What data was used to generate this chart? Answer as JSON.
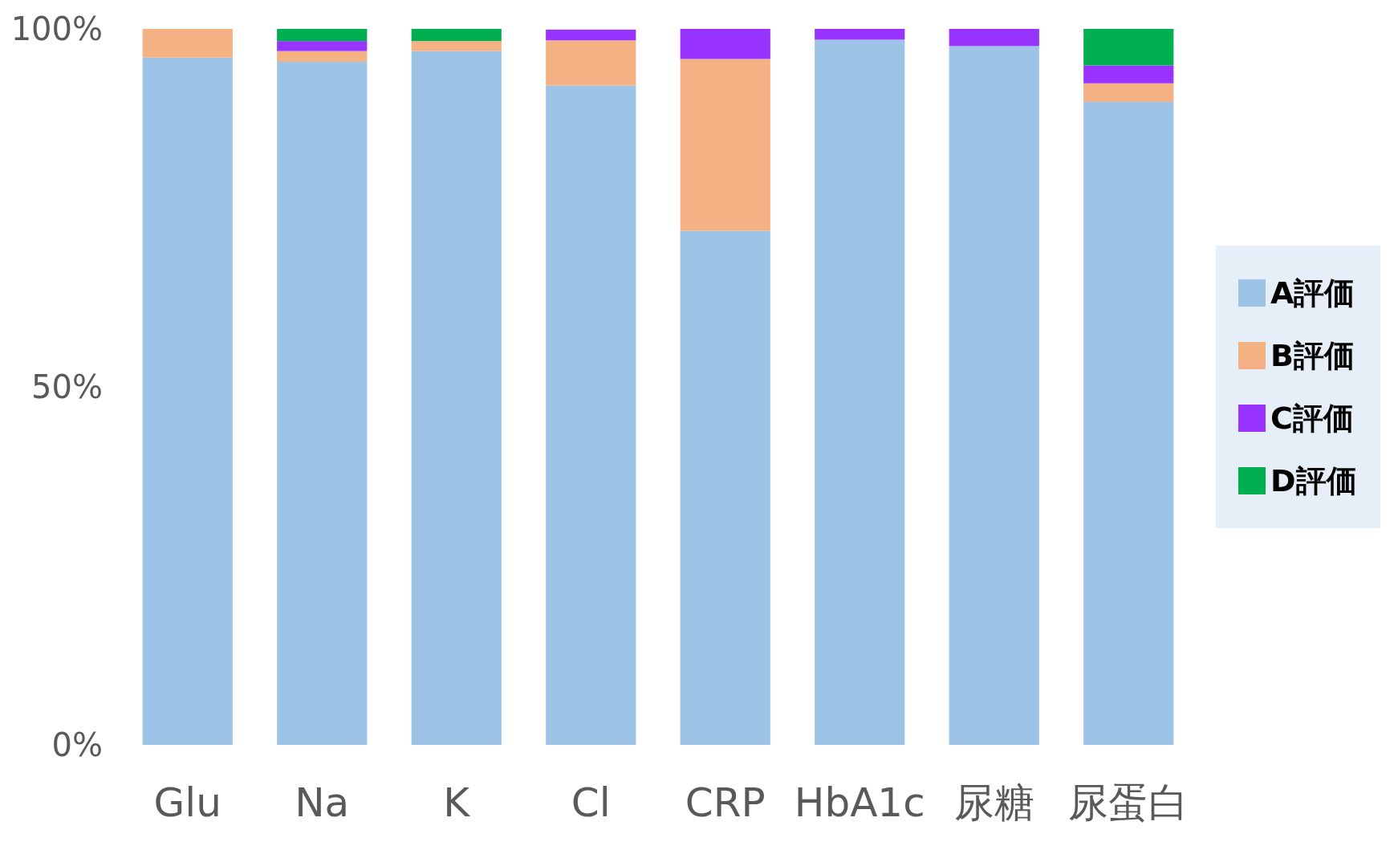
{
  "chart_data": {
    "type": "bar",
    "stacked": true,
    "categories": [
      "Glu",
      "Na",
      "K",
      "Cl",
      "CRP",
      "HbA1c",
      "尿糖",
      "尿蛋白"
    ],
    "series": [
      {
        "name": "A評価",
        "color": "#9dc3e6",
        "values": [
          96,
          95.4,
          96.9,
          92.1,
          71.8,
          98.5,
          97.6,
          89.8
        ]
      },
      {
        "name": "B評価",
        "color": "#f4b183",
        "values": [
          4,
          1.5,
          1.4,
          6.3,
          24.0,
          null,
          null,
          2.6
        ]
      },
      {
        "name": "C評価",
        "color": "#9933ff",
        "values": [
          null,
          1.4,
          null,
          1.5,
          4.2,
          1.5,
          2.4,
          2.5
        ]
      },
      {
        "name": "D評価",
        "color": "#00b050",
        "values": [
          null,
          1.7,
          1.7,
          null,
          null,
          null,
          null,
          5.1
        ]
      }
    ],
    "ylim": [
      0,
      100
    ],
    "yticks": [
      {
        "value": 0,
        "label": "0%"
      },
      {
        "value": 50,
        "label": "50%"
      },
      {
        "value": 100,
        "label": "100%"
      }
    ],
    "grid": false,
    "legend": "right"
  }
}
